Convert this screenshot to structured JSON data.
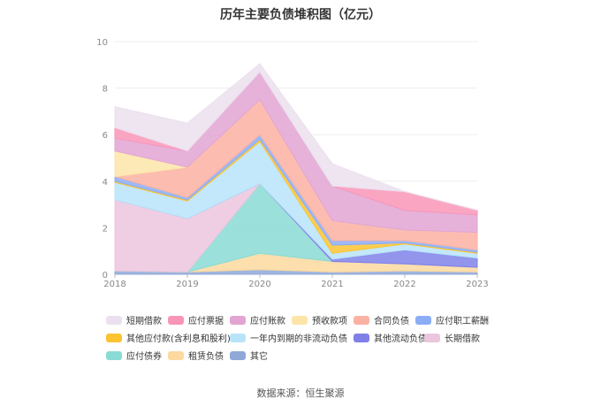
{
  "chart_data": {
    "type": "area",
    "stacked": true,
    "title": "历年主要负债堆积图（亿元）",
    "categories": [
      "2018",
      "2019",
      "2020",
      "2021",
      "2022",
      "2023"
    ],
    "ylim": [
      0,
      10
    ],
    "yticks": [
      "0",
      "2",
      "4",
      "6",
      "8",
      "10"
    ],
    "grid": true,
    "legend_position": "bottom",
    "series": [
      {
        "name": "其它",
        "color": "#8fa8d8",
        "values": [
          0.15,
          0.1,
          0.2,
          0.1,
          0.15,
          0.1
        ]
      },
      {
        "name": "租赁负债",
        "color": "#fdd9a0",
        "values": [
          0.0,
          0.0,
          0.7,
          0.45,
          0.3,
          0.2
        ]
      },
      {
        "name": "应付债券",
        "color": "#8adbd5",
        "values": [
          0.0,
          0.0,
          3.0,
          0.0,
          0.0,
          0.0
        ]
      },
      {
        "name": "长期借款",
        "color": "#ecc6de",
        "values": [
          3.05,
          2.3,
          0.0,
          0.0,
          0.0,
          0.0
        ]
      },
      {
        "name": "其他流动负债",
        "color": "#8081e8",
        "values": [
          0.0,
          0.0,
          0.0,
          0.1,
          0.6,
          0.4
        ]
      },
      {
        "name": "一年内到期的非流动负债",
        "color": "#b8e4fa",
        "values": [
          0.75,
          0.75,
          1.8,
          0.25,
          0.25,
          0.2
        ]
      },
      {
        "name": "其他应付款(含利息和股利)",
        "color": "#fcc433",
        "values": [
          0.05,
          0.05,
          0.1,
          0.35,
          0.05,
          0.05
        ]
      },
      {
        "name": "应付职工薪酬",
        "color": "#8cadf5",
        "values": [
          0.2,
          0.1,
          0.2,
          0.2,
          0.1,
          0.1
        ]
      },
      {
        "name": "合同负债",
        "color": "#fcb2a2",
        "values": [
          0.0,
          1.3,
          1.5,
          0.85,
          0.45,
          0.75
        ]
      },
      {
        "name": "预收款项",
        "color": "#fde5a8",
        "values": [
          1.1,
          0.0,
          0.0,
          0.0,
          0.0,
          0.0
        ]
      },
      {
        "name": "应付账款",
        "color": "#e2a5d2",
        "values": [
          0.55,
          0.7,
          1.2,
          1.5,
          0.85,
          0.75
        ]
      },
      {
        "name": "应付票据",
        "color": "#f996b8",
        "values": [
          0.45,
          0.0,
          0.0,
          0.0,
          0.8,
          0.2
        ]
      },
      {
        "name": "短期借款",
        "color": "#ebe0ef",
        "values": [
          0.9,
          1.2,
          0.35,
          0.95,
          0.0,
          0.0
        ]
      }
    ],
    "legend_order": [
      "短期借款",
      "应付票据",
      "应付账款",
      "预收款项",
      "合同负债",
      "应付职工薪酬",
      "其他应付款(含利息和股利)",
      "一年内到期的非流动负债",
      "其他流动负债",
      "长期借款",
      "应付债券",
      "租赁负债",
      "其它"
    ]
  },
  "source_text": "数据来源：恒生聚源"
}
